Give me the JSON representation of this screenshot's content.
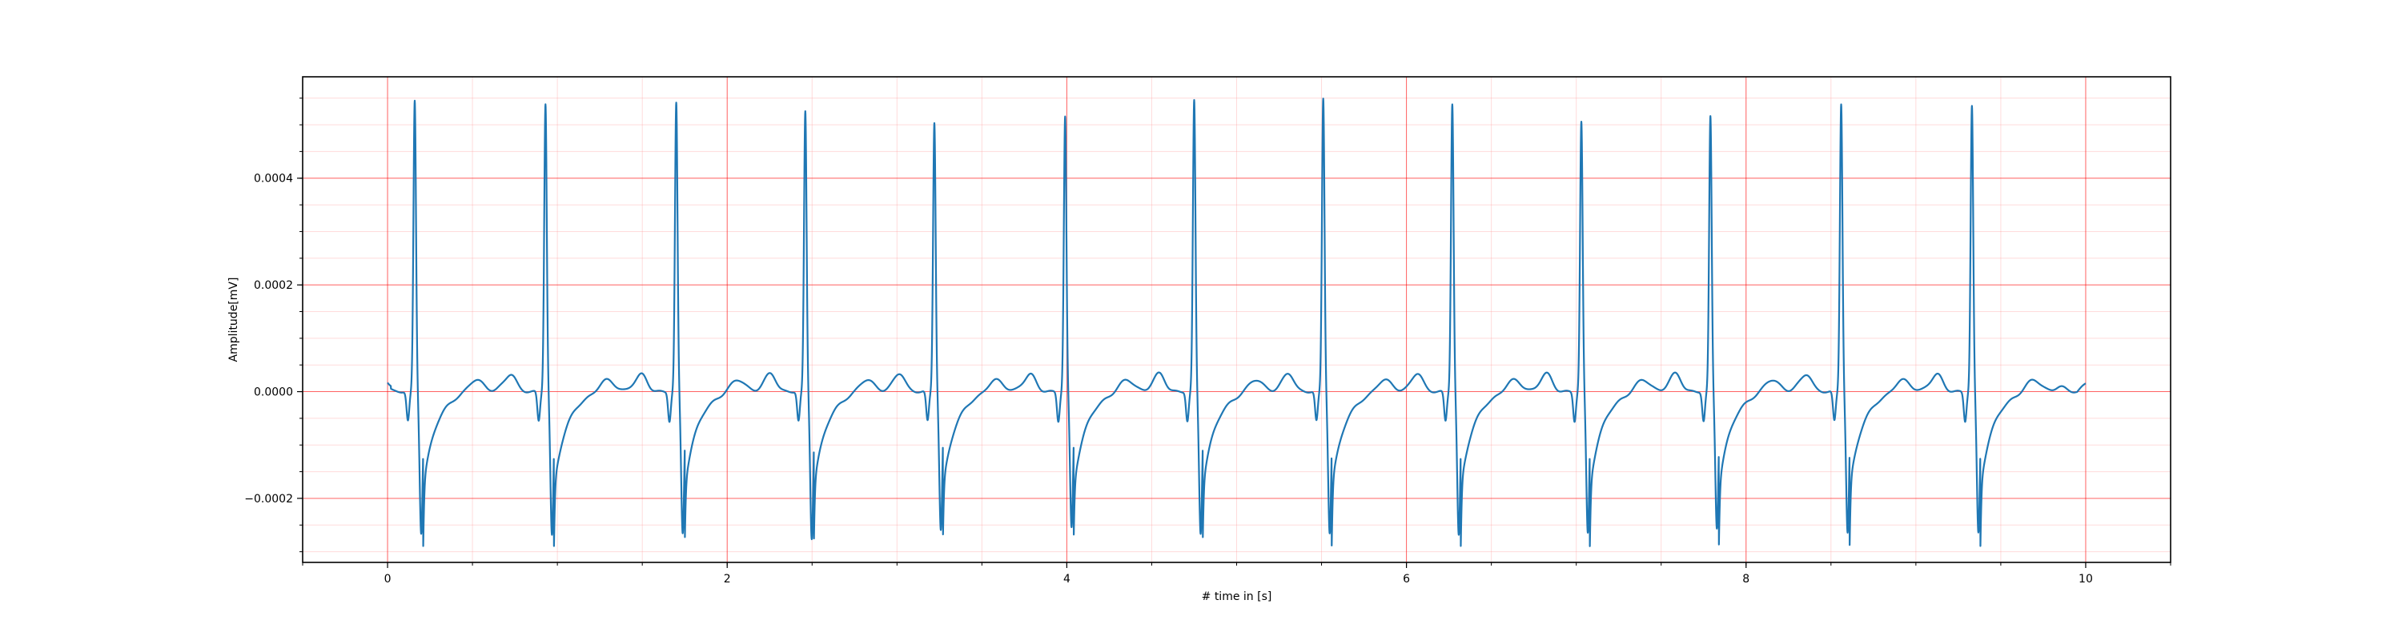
{
  "chart_data": {
    "type": "line",
    "title": "",
    "xlabel": "# time in [s]",
    "ylabel": "Amplitude[mV]",
    "xlim": [
      -0.5,
      10.5
    ],
    "ylim": [
      -0.00032,
      0.00059
    ],
    "x_ticks": [
      {
        "value": 0,
        "label": "0"
      },
      {
        "value": 2,
        "label": "2"
      },
      {
        "value": 4,
        "label": "4"
      },
      {
        "value": 6,
        "label": "6"
      },
      {
        "value": 8,
        "label": "8"
      },
      {
        "value": 10,
        "label": "10"
      }
    ],
    "y_ticks": [
      {
        "value": -0.0002,
        "label": "−0.0002"
      },
      {
        "value": 0.0,
        "label": "0.0000"
      },
      {
        "value": 0.0002,
        "label": "0.0002"
      },
      {
        "value": 0.0004,
        "label": "0.0004"
      }
    ],
    "x_minor_step": 0.5,
    "y_minor_step": 5e-05,
    "grid": {
      "major": true,
      "minor": true
    },
    "major_grid_color": "#ff0000",
    "minor_grid_color": "#ff9999",
    "series": [
      {
        "color": "#1f77b4",
        "beats": [
          {
            "r_time": 0.16,
            "r_peak": 0.000545,
            "s_trough": -0.000265
          },
          {
            "r_time": 0.93,
            "r_peak": 0.00054,
            "s_trough": -0.00027
          },
          {
            "r_time": 1.7,
            "r_peak": 0.00054,
            "s_trough": -0.000265
          },
          {
            "r_time": 2.46,
            "r_peak": 0.000525,
            "s_trough": -0.000275
          },
          {
            "r_time": 3.22,
            "r_peak": 0.000505,
            "s_trough": -0.00026
          },
          {
            "r_time": 3.99,
            "r_peak": 0.000515,
            "s_trough": -0.000255
          },
          {
            "r_time": 4.75,
            "r_peak": 0.000545,
            "s_trough": -0.000265
          },
          {
            "r_time": 5.51,
            "r_peak": 0.00055,
            "s_trough": -0.000265
          },
          {
            "r_time": 6.27,
            "r_peak": 0.00054,
            "s_trough": -0.00027
          },
          {
            "r_time": 7.03,
            "r_peak": 0.000505,
            "s_trough": -0.000265
          },
          {
            "r_time": 7.79,
            "r_peak": 0.000515,
            "s_trough": -0.000255
          },
          {
            "r_time": 8.56,
            "r_peak": 0.00054,
            "s_trough": -0.000265
          },
          {
            "r_time": 9.33,
            "r_peak": 0.000535,
            "s_trough": -0.000265
          }
        ],
        "x_start": 0,
        "x_end": 10,
        "start_value": 5e-06,
        "end_value": 1.5e-05
      }
    ]
  }
}
